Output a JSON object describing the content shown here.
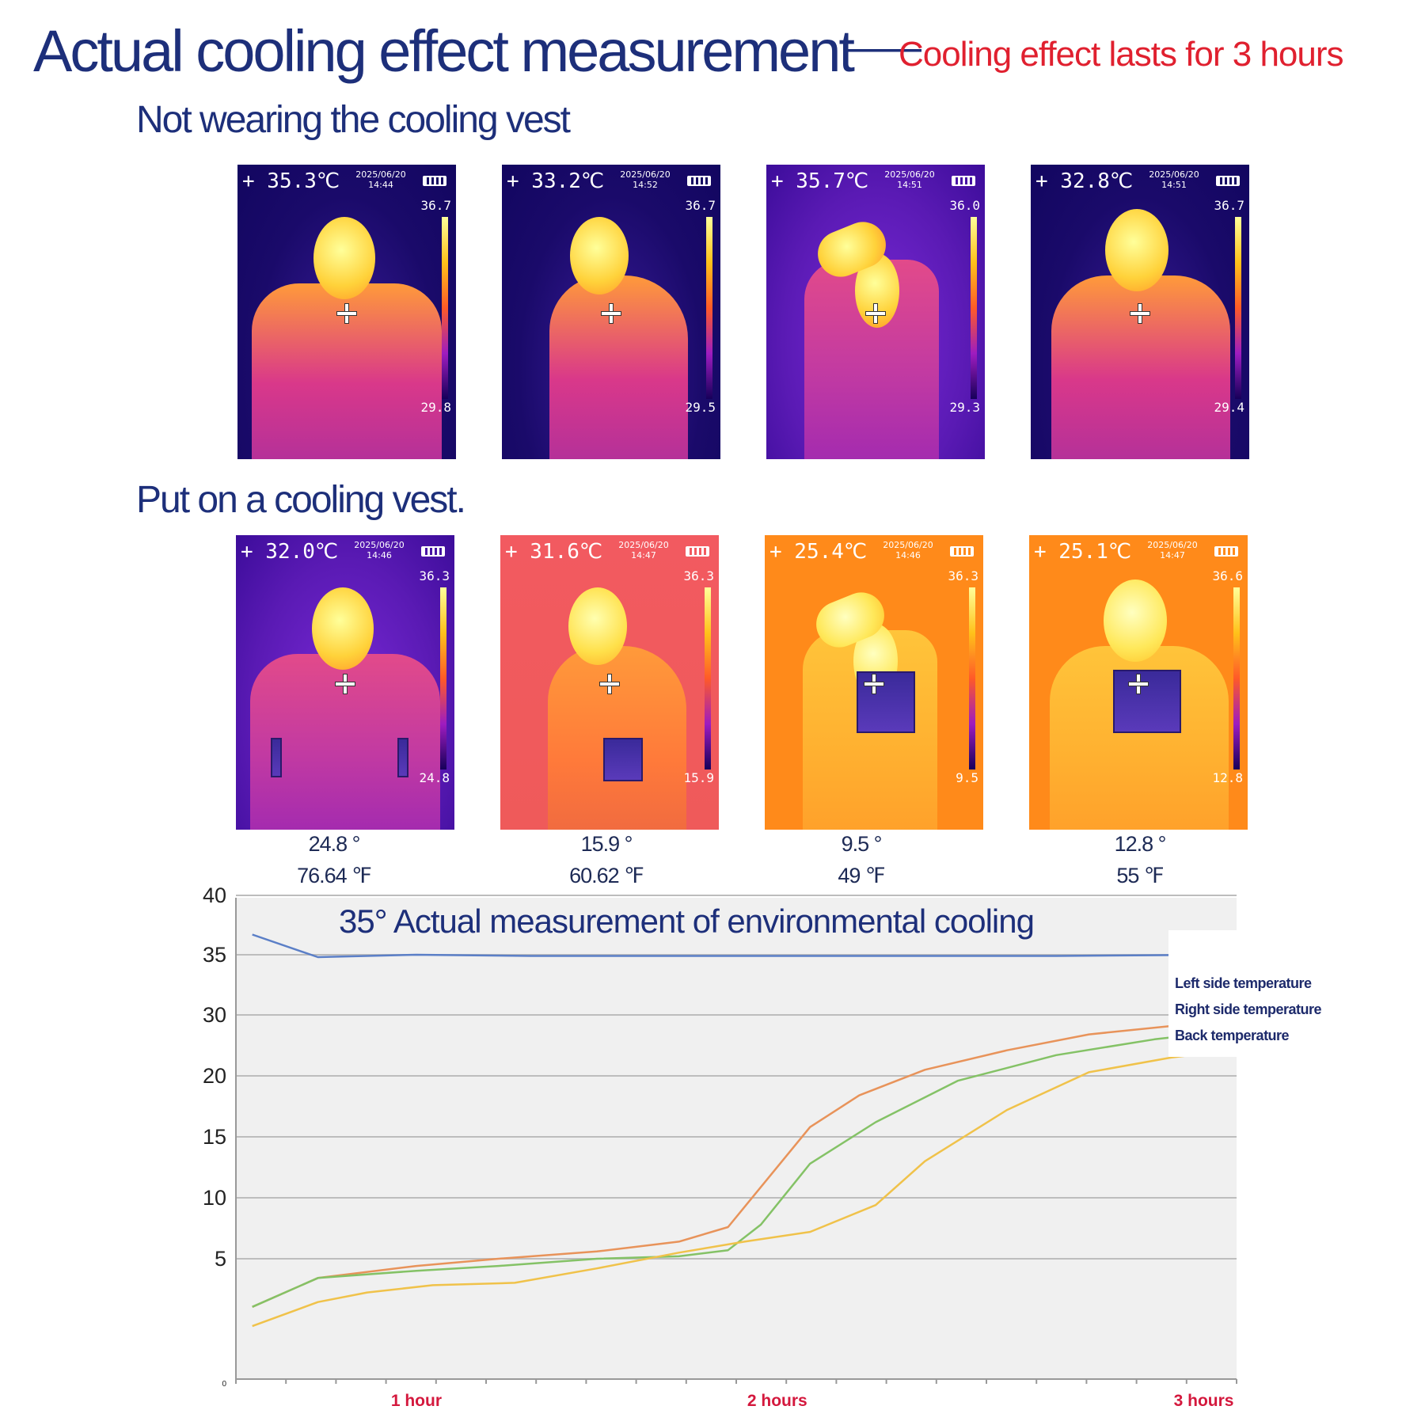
{
  "header": {
    "title": "Actual cooling effect measurement",
    "dash": "——",
    "subtitle": "Cooling effect lasts for 3 hours"
  },
  "sections": {
    "before": "Not wearing the cooling vest",
    "after": "Put on a cooling vest."
  },
  "colors": {
    "title": "#1d2f7a",
    "subtitle": "#e0202f",
    "ambient_series": "#5b7fc7",
    "left_series": "#e8935a",
    "right_series": "#84c266",
    "back_series": "#f0c24a",
    "x_label": "#d4183d"
  },
  "thermal_before": [
    {
      "temp": "+ 35.3℃",
      "date": "2025/06/20",
      "time": "14:44",
      "max": "36.7",
      "min": "29.8",
      "palette": "purple",
      "pose": "front"
    },
    {
      "temp": "+ 33.2℃",
      "date": "2025/06/20",
      "time": "14:52",
      "max": "36.7",
      "min": "29.5",
      "palette": "purple",
      "pose": "side"
    },
    {
      "temp": "+ 35.7℃",
      "date": "2025/06/20",
      "time": "14:51",
      "max": "36.0",
      "min": "29.3",
      "palette": "violet",
      "pose": "arm-up"
    },
    {
      "temp": "+ 32.8℃",
      "date": "2025/06/20",
      "time": "14:51",
      "max": "36.7",
      "min": "29.4",
      "palette": "purple",
      "pose": "back"
    }
  ],
  "thermal_after": [
    {
      "temp": "+ 32.0℃",
      "date": "2025/06/20",
      "time": "14:46",
      "max": "36.3",
      "min": "24.8",
      "palette": "violet",
      "pose": "front"
    },
    {
      "temp": "+ 31.6℃",
      "date": "2025/06/20",
      "time": "14:47",
      "max": "36.3",
      "min": "15.9",
      "palette": "salmon",
      "pose": "side"
    },
    {
      "temp": "+ 25.4℃",
      "date": "2025/06/20",
      "time": "14:46",
      "max": "36.3",
      "min": "9.5",
      "palette": "orange",
      "pose": "arm-up"
    },
    {
      "temp": "+ 25.1℃",
      "date": "2025/06/20",
      "time": "14:47",
      "max": "36.6",
      "min": "12.8",
      "palette": "orange",
      "pose": "back"
    }
  ],
  "readings": [
    {
      "celsius": "24.8 °",
      "fahrenheit": "76.64 ℉"
    },
    {
      "celsius": "15.9 °",
      "fahrenheit": "60.62 ℉"
    },
    {
      "celsius": "9.5 °",
      "fahrenheit": "49 ℉"
    },
    {
      "celsius": "12.8 °",
      "fahrenheit": "55 ℉"
    }
  ],
  "chart_data": {
    "type": "line",
    "title": "35°  Actual measurement of environmental cooling",
    "xlabel": "",
    "ylabel": "",
    "ylim": [
      0,
      40
    ],
    "xlim": [
      0,
      3.05
    ],
    "grid": true,
    "legend_position": "right",
    "y_ticks": [
      "0",
      "5",
      "10",
      "15",
      "20",
      "30",
      "35",
      "40"
    ],
    "x_tick_labels": [
      {
        "value": 0.55,
        "label": "1 hour"
      },
      {
        "value": 1.65,
        "label": "2 hours"
      },
      {
        "value": 2.95,
        "label": "3 hours"
      }
    ],
    "series": [
      {
        "name": "",
        "points": [
          [
            0.05,
            36.7
          ],
          [
            0.25,
            34.8
          ],
          [
            0.55,
            35.0
          ],
          [
            0.9,
            34.9
          ],
          [
            1.4,
            34.9
          ],
          [
            2.0,
            34.9
          ],
          [
            2.5,
            34.9
          ],
          [
            3.0,
            35.0
          ]
        ]
      },
      {
        "name": "Left side temperature",
        "points": [
          [
            0.05,
            3.0
          ],
          [
            0.25,
            4.2
          ],
          [
            0.55,
            4.7
          ],
          [
            0.8,
            5.0
          ],
          [
            1.1,
            5.6
          ],
          [
            1.35,
            6.4
          ],
          [
            1.5,
            7.6
          ],
          [
            1.75,
            15.8
          ],
          [
            1.9,
            18.4
          ],
          [
            2.1,
            21.0
          ],
          [
            2.35,
            24.2
          ],
          [
            2.6,
            26.8
          ],
          [
            3.0,
            29.0
          ]
        ]
      },
      {
        "name": "Right side temperature",
        "points": [
          [
            0.05,
            3.0
          ],
          [
            0.25,
            4.2
          ],
          [
            0.55,
            4.5
          ],
          [
            0.8,
            4.7
          ],
          [
            1.1,
            5.0
          ],
          [
            1.35,
            5.2
          ],
          [
            1.5,
            5.7
          ],
          [
            1.6,
            7.8
          ],
          [
            1.75,
            12.8
          ],
          [
            1.95,
            16.2
          ],
          [
            2.2,
            19.6
          ],
          [
            2.5,
            23.4
          ],
          [
            2.8,
            26.0
          ],
          [
            3.0,
            27.2
          ]
        ]
      },
      {
        "name": "Back temperature",
        "points": [
          [
            0.05,
            2.2
          ],
          [
            0.25,
            3.2
          ],
          [
            0.4,
            3.6
          ],
          [
            0.6,
            3.9
          ],
          [
            0.85,
            4.0
          ],
          [
            1.1,
            4.6
          ],
          [
            1.35,
            5.5
          ],
          [
            1.55,
            6.4
          ],
          [
            1.75,
            7.2
          ],
          [
            1.95,
            9.4
          ],
          [
            2.1,
            13.0
          ],
          [
            2.35,
            17.2
          ],
          [
            2.6,
            20.6
          ],
          [
            2.85,
            23.0
          ],
          [
            3.0,
            24.0
          ]
        ]
      }
    ]
  }
}
